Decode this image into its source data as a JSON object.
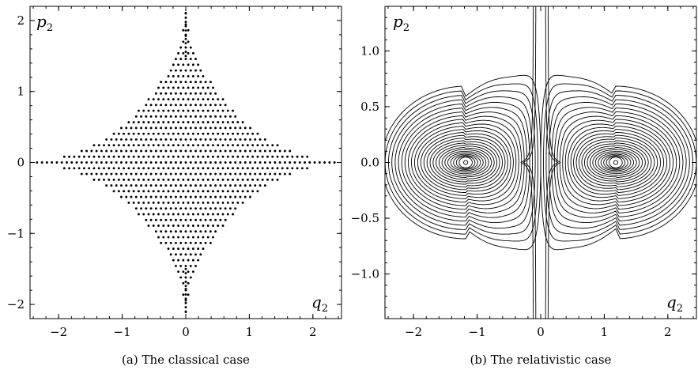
{
  "chart_data": [
    {
      "type": "scatter",
      "caption": "(a) The classical case",
      "xlabel": "q2",
      "ylabel": "p2",
      "xlim": [
        -2.45,
        2.45
      ],
      "ylim": [
        -2.2,
        2.2
      ],
      "x_ticks": [
        -2,
        -1,
        0,
        1,
        2
      ],
      "y_ticks": [
        -2,
        -1,
        0,
        1,
        2
      ],
      "x_tick_labels": [
        "−2",
        "−1",
        "0",
        "1",
        "2"
      ],
      "y_tick_labels": [
        "−2",
        "−1",
        "0",
        "1",
        "2"
      ],
      "marker_color": "#000000",
      "grid": false,
      "description_shape": "astroid-like region symmetric about both axes, spanning q2 in [-2.4, 2.4] and p2 in [-2.15, 2.15]"
    },
    {
      "type": "contour",
      "caption": "(b) The relativistic case",
      "xlabel": "q2",
      "ylabel": "p2",
      "xlim": [
        -2.45,
        2.45
      ],
      "ylim": [
        -1.4,
        1.4
      ],
      "x_ticks": [
        -2,
        -1,
        0,
        1,
        2
      ],
      "y_ticks": [
        -1.0,
        -0.5,
        0.0,
        0.5,
        1.0
      ],
      "x_tick_labels": [
        "−2",
        "−1",
        "0",
        "1",
        "2"
      ],
      "y_tick_labels": [
        "−1.0",
        "−0.5",
        "0.0",
        "0.5",
        "1.0"
      ],
      "centers": [
        [
          -1.18,
          0.0
        ],
        [
          1.18,
          0.0
        ]
      ],
      "line_color": "#000000",
      "grid": false
    }
  ]
}
